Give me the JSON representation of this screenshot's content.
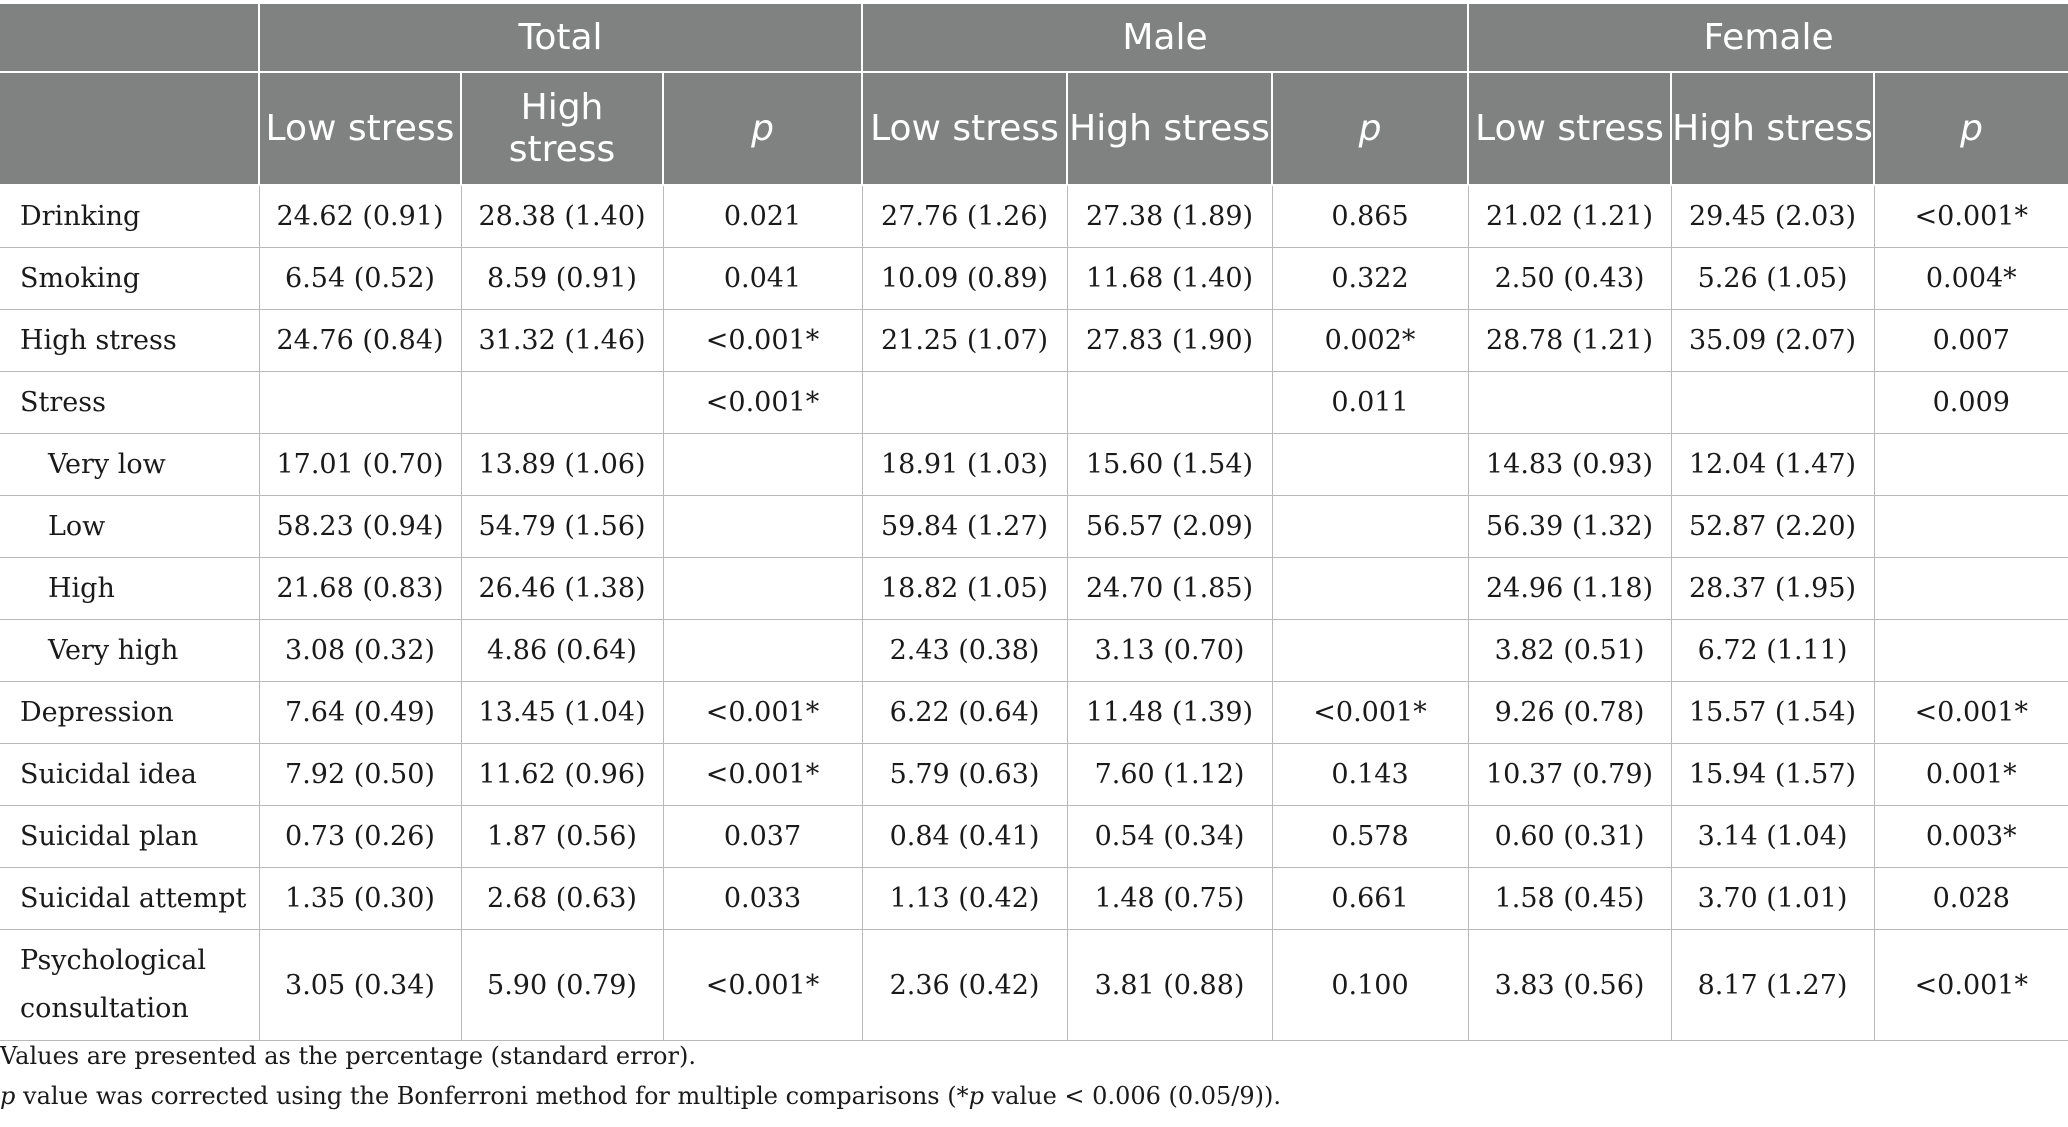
{
  "header": {
    "groups": [
      "Total",
      "Male",
      "Female"
    ],
    "subheaders": [
      "Low stress",
      "High stress",
      "p"
    ]
  },
  "rows": [
    {
      "label": "Drinking",
      "indent": false,
      "cells": [
        "24.62 (0.91)",
        "28.38 (1.40)",
        "0.021",
        "27.76 (1.26)",
        "27.38 (1.89)",
        "0.865",
        "21.02 (1.21)",
        "29.45 (2.03)",
        "<0.001*"
      ]
    },
    {
      "label": "Smoking",
      "indent": false,
      "cells": [
        "6.54 (0.52)",
        "8.59 (0.91)",
        "0.041",
        "10.09 (0.89)",
        "11.68 (1.40)",
        "0.322",
        "2.50 (0.43)",
        "5.26 (1.05)",
        "0.004*"
      ]
    },
    {
      "label": "High stress",
      "indent": false,
      "cells": [
        "24.76 (0.84)",
        "31.32 (1.46)",
        "<0.001*",
        "21.25 (1.07)",
        "27.83 (1.90)",
        "0.002*",
        "28.78 (1.21)",
        "35.09 (2.07)",
        "0.007"
      ]
    },
    {
      "label": "Stress",
      "indent": false,
      "cells": [
        "",
        "",
        "<0.001*",
        "",
        "",
        "0.011",
        "",
        "",
        "0.009"
      ]
    },
    {
      "label": "Very low",
      "indent": true,
      "cells": [
        "17.01 (0.70)",
        "13.89 (1.06)",
        "",
        "18.91 (1.03)",
        "15.60 (1.54)",
        "",
        "14.83 (0.93)",
        "12.04 (1.47)",
        ""
      ]
    },
    {
      "label": "Low",
      "indent": true,
      "cells": [
        "58.23 (0.94)",
        "54.79 (1.56)",
        "",
        "59.84 (1.27)",
        "56.57 (2.09)",
        "",
        "56.39 (1.32)",
        "52.87 (2.20)",
        ""
      ]
    },
    {
      "label": "High",
      "indent": true,
      "cells": [
        "21.68 (0.83)",
        "26.46 (1.38)",
        "",
        "18.82 (1.05)",
        "24.70 (1.85)",
        "",
        "24.96 (1.18)",
        "28.37 (1.95)",
        ""
      ]
    },
    {
      "label": "Very high",
      "indent": true,
      "cells": [
        "3.08 (0.32)",
        "4.86 (0.64)",
        "",
        "2.43 (0.38)",
        "3.13 (0.70)",
        "",
        "3.82 (0.51)",
        "6.72 (1.11)",
        ""
      ]
    },
    {
      "label": "Depression",
      "indent": false,
      "cells": [
        "7.64 (0.49)",
        "13.45 (1.04)",
        "<0.001*",
        "6.22 (0.64)",
        "11.48 (1.39)",
        "<0.001*",
        "9.26 (0.78)",
        "15.57 (1.54)",
        "<0.001*"
      ]
    },
    {
      "label": "Suicidal idea",
      "indent": false,
      "cells": [
        "7.92 (0.50)",
        "11.62 (0.96)",
        "<0.001*",
        "5.79 (0.63)",
        "7.60 (1.12)",
        "0.143",
        "10.37 (0.79)",
        "15.94 (1.57)",
        "0.001*"
      ]
    },
    {
      "label": "Suicidal plan",
      "indent": false,
      "cells": [
        "0.73 (0.26)",
        "1.87 (0.56)",
        "0.037",
        "0.84 (0.41)",
        "0.54 (0.34)",
        "0.578",
        "0.60 (0.31)",
        "3.14 (1.04)",
        "0.003*"
      ]
    },
    {
      "label": "Suicidal attempt",
      "indent": false,
      "cells": [
        "1.35 (0.30)",
        "2.68 (0.63)",
        "0.033",
        "1.13 (0.42)",
        "1.48 (0.75)",
        "0.661",
        "1.58 (0.45)",
        "3.70 (1.01)",
        "0.028"
      ]
    },
    {
      "label": "Psychological consultation",
      "indent": false,
      "cells": [
        "3.05 (0.34)",
        "5.90 (0.79)",
        "<0.001*",
        "2.36 (0.42)",
        "3.81 (0.88)",
        "0.100",
        "3.83 (0.56)",
        "8.17 (1.27)",
        "<0.001*"
      ]
    }
  ],
  "notes": {
    "line1": "Values are presented as the percentage (standard error).",
    "line2_italic_p": "p",
    "line2_rest_a": " value was corrected using the Bonferroni method for multiple comparisons (*",
    "line2_italic_p2": "p",
    "line2_rest_b": " value < 0.006 (0.05/9))."
  }
}
